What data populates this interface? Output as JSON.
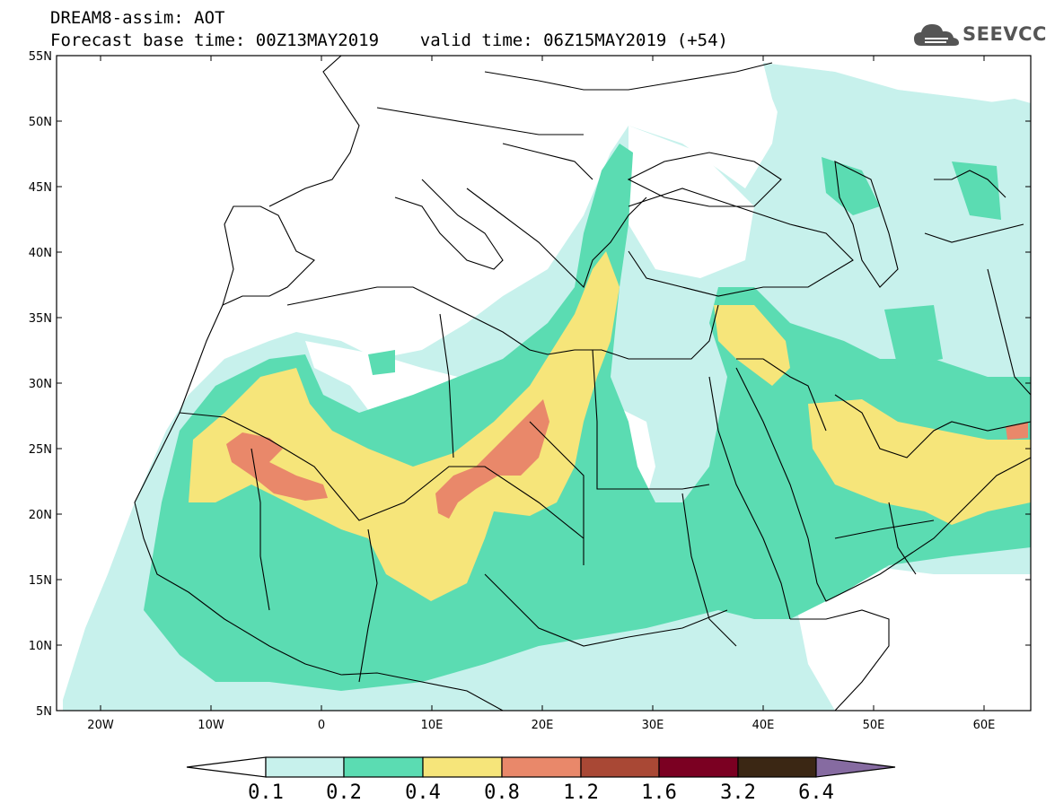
{
  "header": {
    "line1": "DREAM8-assim: AOT",
    "line2": "Forecast base time: 00Z13MAY2019    valid time: 06Z15MAY2019 (+54)"
  },
  "logo": {
    "text": "SEEVCCC",
    "icon": "cloud-icon"
  },
  "map": {
    "lat_labels": [
      "55N",
      "50N",
      "45N",
      "40N",
      "35N",
      "30N",
      "25N",
      "20N",
      "15N",
      "10N",
      "5N"
    ],
    "lon_labels": [
      "20W",
      "10W",
      "0",
      "10E",
      "20E",
      "30E",
      "40E",
      "50E",
      "60E"
    ]
  },
  "colorbar": {
    "labels": [
      "0.1",
      "0.2",
      "0.4",
      "0.8",
      "1.2",
      "1.6",
      "3.2",
      "6.4"
    ],
    "colors": [
      "#ffffff",
      "#c7f1ec",
      "#5bdcb2",
      "#f6e57a",
      "#e9886a",
      "#a94835",
      "#7b0022",
      "#3b2714",
      "#866ba1"
    ]
  }
}
